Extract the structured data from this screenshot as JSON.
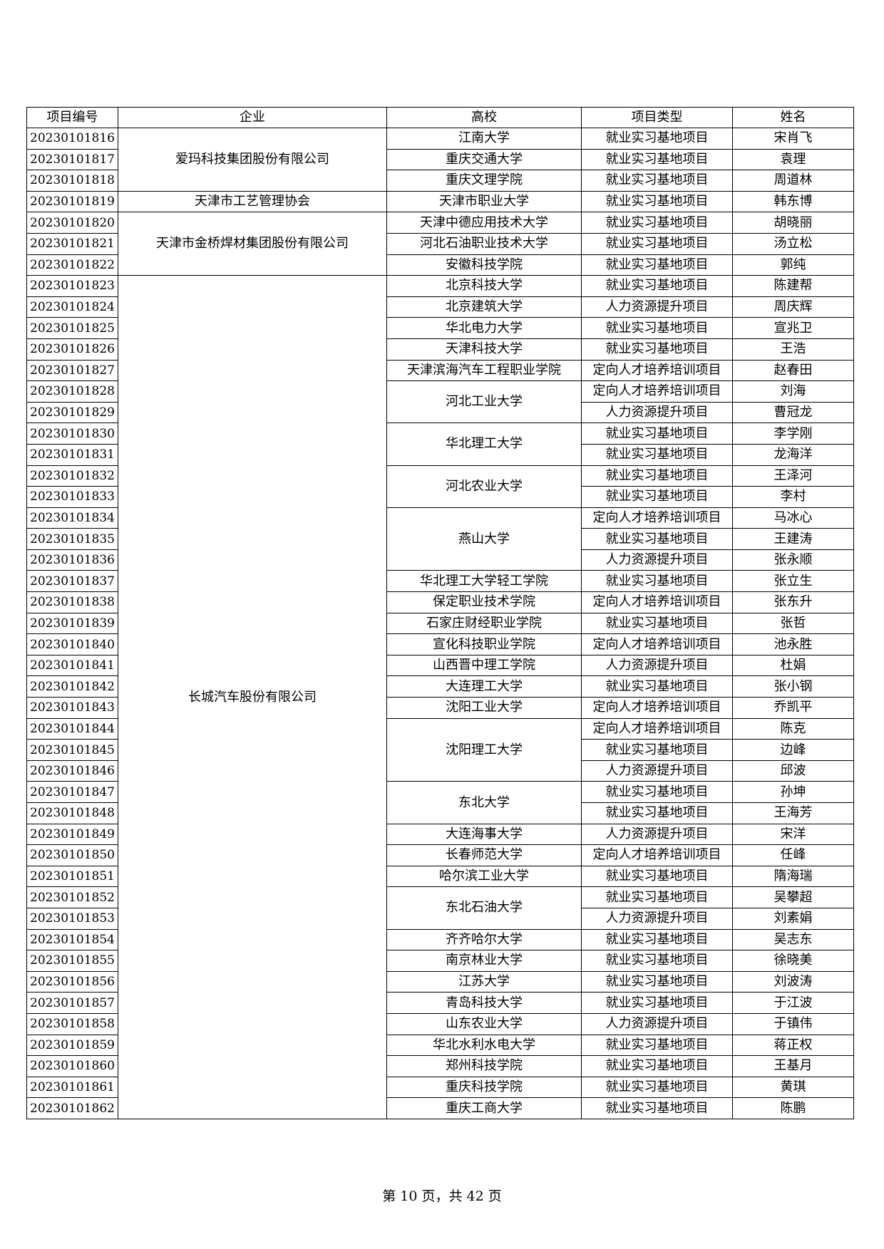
{
  "header": {
    "id": "项目编号",
    "enterprise": "企业",
    "school": "高校",
    "type": "项目类型",
    "name": "姓名"
  },
  "enterprises": [
    {
      "name": "爱玛科技集团股份有限公司",
      "schools": [
        {
          "name": "江南大学",
          "rows": [
            {
              "id": "20230101816",
              "type": "就业实习基地项目",
              "name": "宋肖飞"
            }
          ]
        },
        {
          "name": "重庆交通大学",
          "rows": [
            {
              "id": "20230101817",
              "type": "就业实习基地项目",
              "name": "袁理"
            }
          ]
        },
        {
          "name": "重庆文理学院",
          "rows": [
            {
              "id": "20230101818",
              "type": "就业实习基地项目",
              "name": "周道林"
            }
          ]
        }
      ]
    },
    {
      "name": "天津市工艺管理协会",
      "schools": [
        {
          "name": "天津市职业大学",
          "rows": [
            {
              "id": "20230101819",
              "type": "就业实习基地项目",
              "name": "韩东博"
            }
          ]
        }
      ]
    },
    {
      "name": "天津市金桥焊材集团股份有限公司",
      "schools": [
        {
          "name": "天津中德应用技术大学",
          "rows": [
            {
              "id": "20230101820",
              "type": "就业实习基地项目",
              "name": "胡晓丽"
            }
          ]
        },
        {
          "name": "河北石油职业技术大学",
          "rows": [
            {
              "id": "20230101821",
              "type": "就业实习基地项目",
              "name": "汤立松"
            }
          ]
        },
        {
          "name": "安徽科技学院",
          "rows": [
            {
              "id": "20230101822",
              "type": "就业实习基地项目",
              "name": "郭纯"
            }
          ]
        }
      ]
    },
    {
      "name": "长城汽车股份有限公司",
      "schools": [
        {
          "name": "北京科技大学",
          "rows": [
            {
              "id": "20230101823",
              "type": "就业实习基地项目",
              "name": "陈建帮"
            }
          ]
        },
        {
          "name": "北京建筑大学",
          "rows": [
            {
              "id": "20230101824",
              "type": "人力资源提升项目",
              "name": "周庆辉"
            }
          ]
        },
        {
          "name": "华北电力大学",
          "rows": [
            {
              "id": "20230101825",
              "type": "就业实习基地项目",
              "name": "宣兆卫"
            }
          ]
        },
        {
          "name": "天津科技大学",
          "rows": [
            {
              "id": "20230101826",
              "type": "就业实习基地项目",
              "name": "王浩"
            }
          ]
        },
        {
          "name": "天津滨海汽车工程职业学院",
          "rows": [
            {
              "id": "20230101827",
              "type": "定向人才培养培训项目",
              "name": "赵春田"
            }
          ]
        },
        {
          "name": "河北工业大学",
          "rows": [
            {
              "id": "20230101828",
              "type": "定向人才培养培训项目",
              "name": "刘海"
            },
            {
              "id": "20230101829",
              "type": "人力资源提升项目",
              "name": "曹冠龙"
            }
          ]
        },
        {
          "name": "华北理工大学",
          "rows": [
            {
              "id": "20230101830",
              "type": "就业实习基地项目",
              "name": "李学刚"
            },
            {
              "id": "20230101831",
              "type": "就业实习基地项目",
              "name": "龙海洋"
            }
          ]
        },
        {
          "name": "河北农业大学",
          "rows": [
            {
              "id": "20230101832",
              "type": "就业实习基地项目",
              "name": "王泽河"
            },
            {
              "id": "20230101833",
              "type": "就业实习基地项目",
              "name": "李村"
            }
          ]
        },
        {
          "name": "燕山大学",
          "rows": [
            {
              "id": "20230101834",
              "type": "定向人才培养培训项目",
              "name": "马冰心"
            },
            {
              "id": "20230101835",
              "type": "就业实习基地项目",
              "name": "王建涛"
            },
            {
              "id": "20230101836",
              "type": "人力资源提升项目",
              "name": "张永顺"
            }
          ]
        },
        {
          "name": "华北理工大学轻工学院",
          "rows": [
            {
              "id": "20230101837",
              "type": "就业实习基地项目",
              "name": "张立生"
            }
          ]
        },
        {
          "name": "保定职业技术学院",
          "rows": [
            {
              "id": "20230101838",
              "type": "定向人才培养培训项目",
              "name": "张东升"
            }
          ]
        },
        {
          "name": "石家庄财经职业学院",
          "rows": [
            {
              "id": "20230101839",
              "type": "就业实习基地项目",
              "name": "张哲"
            }
          ]
        },
        {
          "name": "宣化科技职业学院",
          "rows": [
            {
              "id": "20230101840",
              "type": "定向人才培养培训项目",
              "name": "池永胜"
            }
          ]
        },
        {
          "name": "山西晋中理工学院",
          "rows": [
            {
              "id": "20230101841",
              "type": "人力资源提升项目",
              "name": "杜娟"
            }
          ]
        },
        {
          "name": "大连理工大学",
          "rows": [
            {
              "id": "20230101842",
              "type": "就业实习基地项目",
              "name": "张小钢"
            }
          ]
        },
        {
          "name": "沈阳工业大学",
          "rows": [
            {
              "id": "20230101843",
              "type": "定向人才培养培训项目",
              "name": "乔凯平"
            }
          ]
        },
        {
          "name": "沈阳理工大学",
          "rows": [
            {
              "id": "20230101844",
              "type": "定向人才培养培训项目",
              "name": "陈克"
            },
            {
              "id": "20230101845",
              "type": "就业实习基地项目",
              "name": "边峰"
            },
            {
              "id": "20230101846",
              "type": "人力资源提升项目",
              "name": "邱波"
            }
          ]
        },
        {
          "name": "东北大学",
          "rows": [
            {
              "id": "20230101847",
              "type": "就业实习基地项目",
              "name": "孙坤"
            },
            {
              "id": "20230101848",
              "type": "就业实习基地项目",
              "name": "王海芳"
            }
          ]
        },
        {
          "name": "大连海事大学",
          "rows": [
            {
              "id": "20230101849",
              "type": "人力资源提升项目",
              "name": "宋洋"
            }
          ]
        },
        {
          "name": "长春师范大学",
          "rows": [
            {
              "id": "20230101850",
              "type": "定向人才培养培训项目",
              "name": "任峰"
            }
          ]
        },
        {
          "name": "哈尔滨工业大学",
          "rows": [
            {
              "id": "20230101851",
              "type": "就业实习基地项目",
              "name": "隋海瑞"
            }
          ]
        },
        {
          "name": "东北石油大学",
          "rows": [
            {
              "id": "20230101852",
              "type": "就业实习基地项目",
              "name": "吴攀超"
            },
            {
              "id": "20230101853",
              "type": "人力资源提升项目",
              "name": "刘素娟"
            }
          ]
        },
        {
          "name": "齐齐哈尔大学",
          "rows": [
            {
              "id": "20230101854",
              "type": "就业实习基地项目",
              "name": "吴志东"
            }
          ]
        },
        {
          "name": "南京林业大学",
          "rows": [
            {
              "id": "20230101855",
              "type": "就业实习基地项目",
              "name": "徐晓美"
            }
          ]
        },
        {
          "name": "江苏大学",
          "rows": [
            {
              "id": "20230101856",
              "type": "就业实习基地项目",
              "name": "刘波涛"
            }
          ]
        },
        {
          "name": "青岛科技大学",
          "rows": [
            {
              "id": "20230101857",
              "type": "就业实习基地项目",
              "name": "于江波"
            }
          ]
        },
        {
          "name": "山东农业大学",
          "rows": [
            {
              "id": "20230101858",
              "type": "人力资源提升项目",
              "name": "于镇伟"
            }
          ]
        },
        {
          "name": "华北水利水电大学",
          "rows": [
            {
              "id": "20230101859",
              "type": "就业实习基地项目",
              "name": "蒋正权"
            }
          ]
        },
        {
          "name": "郑州科技学院",
          "rows": [
            {
              "id": "20230101860",
              "type": "就业实习基地项目",
              "name": "王基月"
            }
          ]
        },
        {
          "name": "重庆科技学院",
          "rows": [
            {
              "id": "20230101861",
              "type": "就业实习基地项目",
              "name": "黄琪"
            }
          ]
        },
        {
          "name": "重庆工商大学",
          "rows": [
            {
              "id": "20230101862",
              "type": "就业实习基地项目",
              "name": "陈鹏"
            }
          ]
        }
      ]
    }
  ],
  "footer": {
    "text": "第 10 页，共 42 页"
  }
}
